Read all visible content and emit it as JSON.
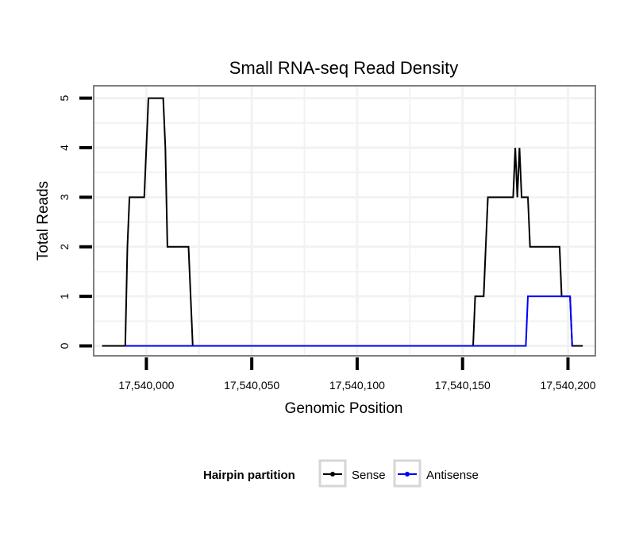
{
  "chart_data": {
    "type": "line",
    "title": "Small RNA-seq Read Density",
    "xlabel": "Genomic Position",
    "ylabel": "Total Reads",
    "xlim": [
      17539975,
      17540213
    ],
    "ylim": [
      -0.2,
      5.25
    ],
    "x_ticks": [
      17540000,
      17540050,
      17540100,
      17540150,
      17540200
    ],
    "x_tick_labels": [
      "17,540,000",
      "17,540,050",
      "17,540,100",
      "17,540,150",
      "17,540,200"
    ],
    "y_ticks": [
      0,
      1,
      2,
      3,
      4,
      5
    ],
    "y_tick_labels": [
      "0",
      "1",
      "2",
      "3",
      "4",
      "5"
    ],
    "grid": true,
    "legend": {
      "title": "Hairpin partition",
      "position": "bottom"
    },
    "series": [
      {
        "name": "Sense",
        "color": "#000000",
        "x": [
          17539979,
          17539990,
          17539991,
          17539992,
          17539999,
          17540001,
          17540008,
          17540009,
          17540010,
          17540020,
          17540022,
          17540155,
          17540156,
          17540160,
          17540161,
          17540162,
          17540174,
          17540175,
          17540176,
          17540177,
          17540178,
          17540179,
          17540181,
          17540182,
          17540196,
          17540197,
          17540201,
          17540202,
          17540207
        ],
        "values": [
          0,
          0,
          2,
          3,
          3,
          5,
          5,
          4,
          2,
          2,
          0,
          0,
          1,
          1,
          2,
          3,
          3,
          4,
          3,
          4,
          3,
          3,
          3,
          2,
          2,
          1,
          1,
          0,
          0
        ]
      },
      {
        "name": "Antisense",
        "color": "#0000ff",
        "x": [
          17539990,
          17540022,
          17540180,
          17540181,
          17540200,
          17540201,
          17540202
        ],
        "values": [
          0,
          0,
          0,
          1,
          1,
          1,
          0
        ]
      }
    ]
  }
}
